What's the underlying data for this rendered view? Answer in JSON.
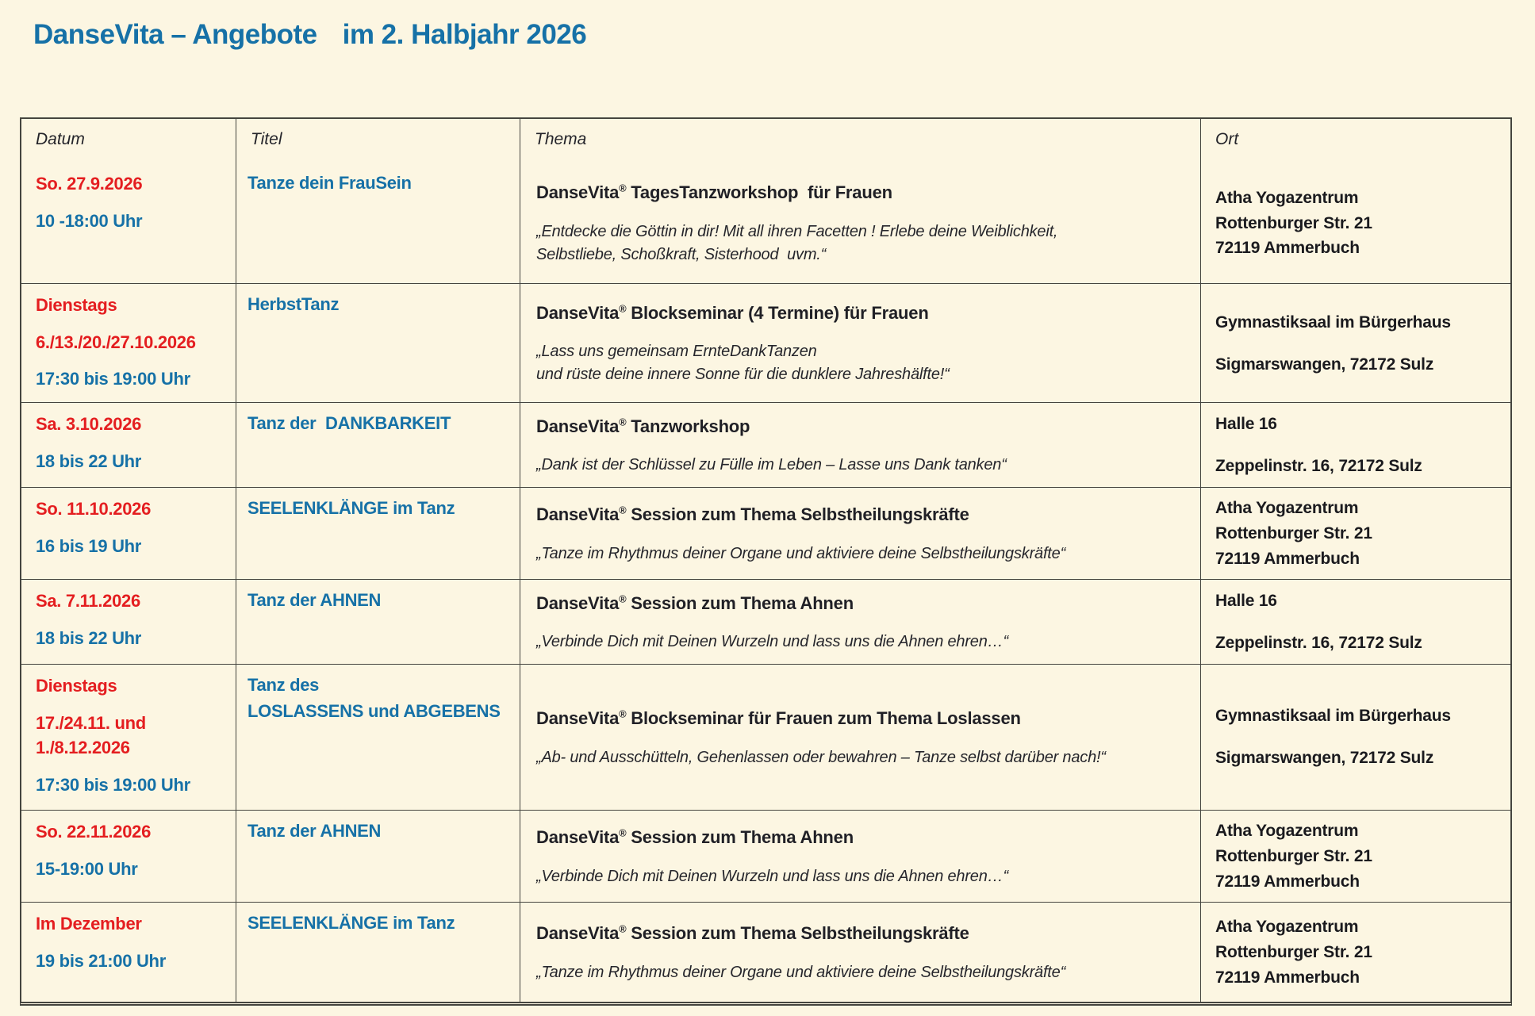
{
  "page_title": {
    "part1": "DanseVita – Angebote",
    "part2": "im 2. Halbjahr 2026"
  },
  "colors": {
    "background": "#fcf6e2",
    "accent_red": "#e41e20",
    "accent_blue": "#1671a7",
    "border": "#45453f",
    "text": "#24242a"
  },
  "table": {
    "headers": [
      "Datum",
      "Titel",
      "Thema",
      "Ort"
    ],
    "rows": [
      {
        "datum": [
          {
            "text": "So. 27.9.2026",
            "color": "red"
          },
          {
            "text": "10 -18:00 Uhr",
            "color": "blue"
          }
        ],
        "titel": [
          "Tanze dein FrauSein"
        ],
        "thema_heading": "DanseVita® TagesTanzworkshop  für Frauen",
        "thema_quote": [
          "„Entdecke die Göttin in dir! Mit all ihren Facetten ! Erlebe deine Weiblichkeit,",
          "Selbstliebe, Schoßkraft, Sisterhood  uvm.“"
        ],
        "ort": [
          "Atha Yogazentrum",
          "Rottenburger Str. 21",
          "72119 Ammerbuch"
        ]
      },
      {
        "datum": [
          {
            "text": "Dienstags",
            "color": "red"
          },
          {
            "text": "6./13./20./27.10.2026",
            "color": "red"
          },
          {
            "text": "17:30 bis 19:00 Uhr",
            "color": "blue"
          }
        ],
        "titel": [
          "HerbstTanz"
        ],
        "thema_heading": "DanseVita® Blockseminar (4 Termine) für Frauen",
        "thema_quote": [
          "„Lass uns gemeinsam ErnteDankTanzen",
          "und rüste deine innere Sonne für die dunklere Jahreshälfte!“"
        ],
        "ort": [
          "Gymnastiksaal im Bürgerhaus",
          "Sigmarswangen, 72172 Sulz"
        ]
      },
      {
        "datum": [
          {
            "text": "Sa. 3.10.2026",
            "color": "red"
          },
          {
            "text": "18 bis 22 Uhr",
            "color": "blue"
          }
        ],
        "titel": [
          "Tanz der  DANKBARKEIT"
        ],
        "thema_heading": "DanseVita® Tanzworkshop",
        "thema_quote": [
          "„Dank ist der Schlüssel zu Fülle im Leben – Lasse uns Dank tanken“"
        ],
        "ort": [
          "Halle 16",
          "Zeppelinstr. 16, 72172 Sulz"
        ]
      },
      {
        "datum": [
          {
            "text": "So. 11.10.2026",
            "color": "red"
          },
          {
            "text": "16 bis 19 Uhr",
            "color": "blue"
          }
        ],
        "titel": [
          "SEELENKLÄNGE im Tanz"
        ],
        "thema_heading": "DanseVita® Session zum Thema Selbstheilungskräfte",
        "thema_quote": [
          "„Tanze im Rhythmus deiner Organe und aktiviere deine Selbstheilungskräfte“"
        ],
        "ort": [
          "Atha Yogazentrum",
          "Rottenburger Str. 21",
          "72119 Ammerbuch"
        ]
      },
      {
        "datum": [
          {
            "text": "Sa. 7.11.2026",
            "color": "red"
          },
          {
            "text": "18 bis 22 Uhr",
            "color": "blue"
          }
        ],
        "titel": [
          "Tanz der AHNEN"
        ],
        "thema_heading": "DanseVita® Session zum Thema Ahnen",
        "thema_quote": [
          "„Verbinde Dich mit Deinen Wurzeln und lass uns die Ahnen ehren…“"
        ],
        "ort": [
          "Halle 16",
          "Zeppelinstr. 16, 72172 Sulz"
        ]
      },
      {
        "datum": [
          {
            "text": "Dienstags",
            "color": "red"
          },
          {
            "text": "17./24.11. und",
            "color": "red"
          },
          {
            "text": "1./8.12.2026",
            "color": "red",
            "tight": true
          },
          {
            "text": "17:30 bis 19:00 Uhr",
            "color": "blue"
          }
        ],
        "titel": [
          "Tanz des",
          "LOSLASSENS und ABGEBENS"
        ],
        "thema_heading": "DanseVita® Blockseminar für Frauen zum Thema Loslassen",
        "thema_quote": [
          "„Ab- und Ausschütteln, Gehenlassen oder bewahren – Tanze selbst darüber nach!“"
        ],
        "ort": [
          "Gymnastiksaal im Bürgerhaus",
          "Sigmarswangen, 72172 Sulz"
        ]
      },
      {
        "datum": [
          {
            "text": "So. 22.11.2026",
            "color": "red"
          },
          {
            "text": "15-19:00 Uhr",
            "color": "blue"
          }
        ],
        "titel": [
          "Tanz der AHNEN"
        ],
        "thema_heading": "DanseVita® Session zum Thema Ahnen",
        "thema_quote": [
          "„Verbinde Dich mit Deinen Wurzeln und lass uns die Ahnen ehren…“"
        ],
        "ort": [
          "Atha Yogazentrum",
          "Rottenburger Str. 21",
          "72119 Ammerbuch"
        ]
      },
      {
        "datum": [
          {
            "text": "Im Dezember",
            "color": "red"
          },
          {
            "text": "19 bis 21:00 Uhr",
            "color": "blue"
          }
        ],
        "titel": [
          "SEELENKLÄNGE im Tanz"
        ],
        "thema_heading": "DanseVita® Session zum Thema Selbstheilungskräfte",
        "thema_quote": [
          "„Tanze im Rhythmus deiner Organe und aktiviere deine Selbstheilungskräfte“"
        ],
        "ort": [
          "Atha Yogazentrum",
          "Rottenburger Str. 21",
          "72119 Ammerbuch"
        ]
      }
    ]
  }
}
